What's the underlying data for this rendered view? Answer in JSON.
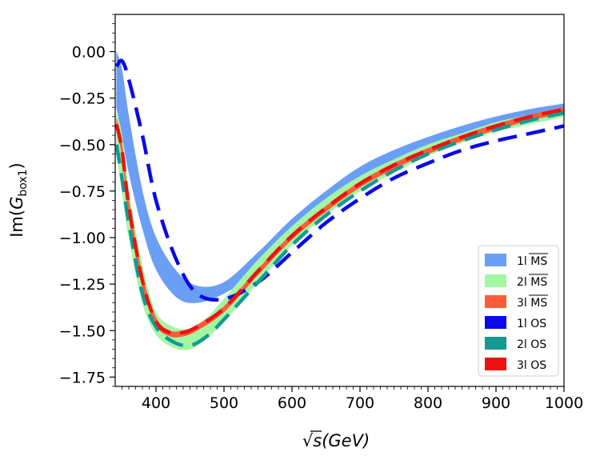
{
  "chart_data": {
    "type": "line",
    "title": "",
    "xlabel": "√s (GeV)",
    "ylabel": "Im(G_box1)",
    "ylabel_main": "Im(",
    "ylabel_sym": "G",
    "ylabel_sub": "box1",
    "ylabel_close": ")",
    "xlabel_sqrt": "√",
    "xlabel_var": "s",
    "xlabel_unit": "(GeV)",
    "xlim": [
      340,
      1000
    ],
    "ylim": [
      -1.8,
      0.2
    ],
    "x_ticks": [
      400,
      500,
      600,
      700,
      800,
      900,
      1000
    ],
    "x_tick_labels": [
      "400",
      "500",
      "600",
      "700",
      "800",
      "900",
      "1000"
    ],
    "y_ticks": [
      0.0,
      -0.25,
      -0.5,
      -0.75,
      -1.0,
      -1.25,
      -1.5,
      -1.75
    ],
    "y_tick_labels": [
      "0.00",
      "−0.25",
      "−0.50",
      "−0.75",
      "−1.00",
      "−1.25",
      "−1.50",
      "−1.75"
    ],
    "legend_position": "lower-right",
    "bands": [
      {
        "name": "1l MS-bar",
        "legend_prefix": "1l ",
        "legend_scheme": "MS",
        "overline": true,
        "color": "#6b9ef5",
        "x": [
          342,
          350,
          360,
          380,
          400,
          430,
          460,
          500,
          550,
          600,
          650,
          700,
          750,
          800,
          850,
          900,
          950,
          1000
        ],
        "upper": [
          0.0,
          -0.1,
          -0.35,
          -0.75,
          -1.0,
          -1.18,
          -1.26,
          -1.24,
          -1.08,
          -0.9,
          -0.75,
          -0.62,
          -0.53,
          -0.46,
          -0.4,
          -0.35,
          -0.31,
          -0.28
        ],
        "lower": [
          -0.3,
          -0.45,
          -0.65,
          -0.95,
          -1.17,
          -1.32,
          -1.35,
          -1.3,
          -1.18,
          -1.0,
          -0.84,
          -0.71,
          -0.61,
          -0.53,
          -0.47,
          -0.42,
          -0.38,
          -0.35
        ]
      },
      {
        "name": "2l MS-bar",
        "legend_prefix": "2l ",
        "legend_scheme": "MS",
        "overline": true,
        "color": "#a3f7a3",
        "x": [
          342,
          350,
          360,
          380,
          400,
          425,
          450,
          475,
          500,
          550,
          600,
          650,
          700,
          750,
          800,
          850,
          900,
          950,
          1000
        ],
        "upper": [
          -0.33,
          -0.45,
          -0.75,
          -1.15,
          -1.4,
          -1.48,
          -1.49,
          -1.43,
          -1.33,
          -1.12,
          -0.94,
          -0.79,
          -0.67,
          -0.58,
          -0.5,
          -0.44,
          -0.38,
          -0.34,
          -0.3
        ],
        "lower": [
          -0.55,
          -0.75,
          -1.0,
          -1.35,
          -1.52,
          -1.59,
          -1.6,
          -1.54,
          -1.45,
          -1.24,
          -1.04,
          -0.88,
          -0.75,
          -0.65,
          -0.56,
          -0.49,
          -0.43,
          -0.39,
          -0.35
        ]
      },
      {
        "name": "3l MS-bar",
        "legend_prefix": "3l ",
        "legend_scheme": "MS",
        "overline": true,
        "color": "#ff5c38",
        "x": [
          342,
          350,
          360,
          380,
          400,
          420,
          440,
          460,
          500,
          550,
          600,
          650,
          700,
          750,
          800,
          850,
          900,
          950,
          1000
        ],
        "upper": [
          -0.36,
          -0.5,
          -0.8,
          -1.2,
          -1.43,
          -1.5,
          -1.5,
          -1.47,
          -1.37,
          -1.17,
          -0.98,
          -0.83,
          -0.7,
          -0.6,
          -0.52,
          -0.45,
          -0.39,
          -0.34,
          -0.3
        ],
        "lower": [
          -0.42,
          -0.56,
          -0.86,
          -1.26,
          -1.47,
          -1.53,
          -1.53,
          -1.5,
          -1.4,
          -1.2,
          -1.01,
          -0.86,
          -0.73,
          -0.63,
          -0.55,
          -0.48,
          -0.42,
          -0.37,
          -0.33
        ]
      }
    ],
    "dashed_lines": [
      {
        "name": "1l OS",
        "legend_prefix": "1l ",
        "legend_scheme": "OS",
        "color": "#0a0ae6",
        "x": [
          342,
          350,
          360,
          380,
          400,
          430,
          460,
          500,
          550,
          600,
          650,
          700,
          750,
          800,
          850,
          900,
          950,
          1000
        ],
        "y": [
          -0.08,
          -0.05,
          -0.15,
          -0.45,
          -0.8,
          -1.12,
          -1.3,
          -1.33,
          -1.24,
          -1.08,
          -0.92,
          -0.79,
          -0.68,
          -0.6,
          -0.53,
          -0.48,
          -0.44,
          -0.4
        ]
      },
      {
        "name": "2l OS",
        "legend_prefix": "2l ",
        "legend_scheme": "OS",
        "color": "#139a94",
        "x": [
          342,
          350,
          360,
          380,
          400,
          425,
          450,
          475,
          500,
          550,
          600,
          650,
          700,
          750,
          800,
          850,
          900,
          950,
          1000
        ],
        "y": [
          -0.5,
          -0.68,
          -0.92,
          -1.3,
          -1.48,
          -1.56,
          -1.58,
          -1.53,
          -1.44,
          -1.24,
          -1.04,
          -0.88,
          -0.75,
          -0.64,
          -0.55,
          -0.48,
          -0.42,
          -0.37,
          -0.33
        ]
      },
      {
        "name": "3l OS",
        "legend_prefix": "3l ",
        "legend_scheme": "OS",
        "color": "#ee1111",
        "x": [
          342,
          350,
          360,
          380,
          400,
          420,
          440,
          460,
          500,
          550,
          600,
          650,
          700,
          750,
          800,
          850,
          900,
          950,
          1000
        ],
        "y": [
          -0.39,
          -0.53,
          -0.83,
          -1.23,
          -1.45,
          -1.51,
          -1.51,
          -1.48,
          -1.38,
          -1.18,
          -0.99,
          -0.84,
          -0.71,
          -0.61,
          -0.53,
          -0.46,
          -0.4,
          -0.35,
          -0.31
        ]
      }
    ]
  }
}
